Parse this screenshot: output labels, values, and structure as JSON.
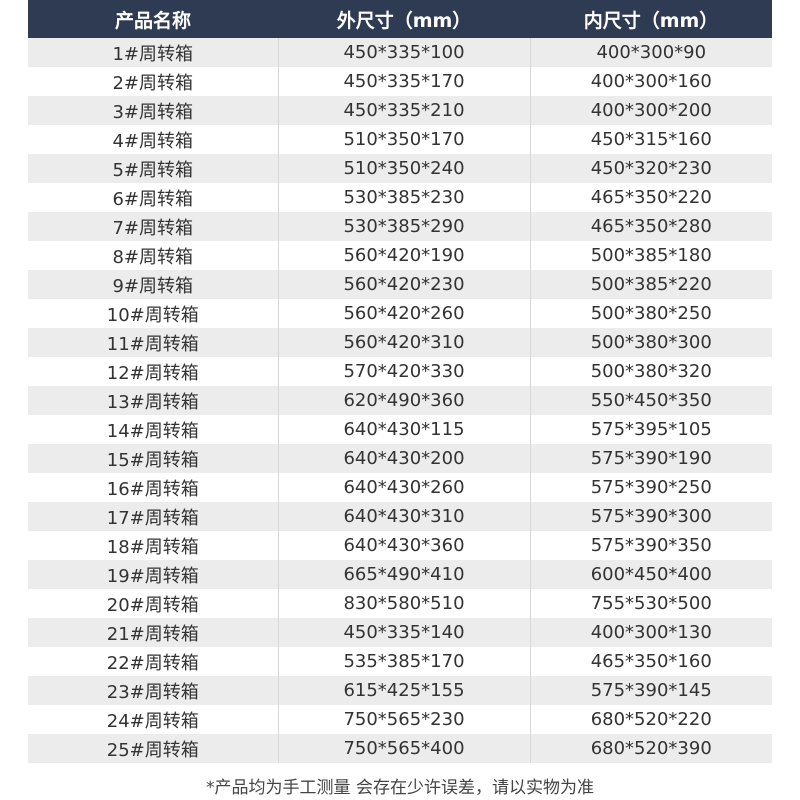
{
  "table": {
    "header": [
      "产品名称",
      "外尺寸（mm）",
      "内尺寸（mm）"
    ],
    "rows": [
      [
        "1#周转箱",
        "450*335*100",
        "400*300*90"
      ],
      [
        "2#周转箱",
        "450*335*170",
        "400*300*160"
      ],
      [
        "3#周转箱",
        "450*335*210",
        "400*300*200"
      ],
      [
        "4#周转箱",
        "510*350*170",
        "450*315*160"
      ],
      [
        "5#周转箱",
        "510*350*240",
        "450*320*230"
      ],
      [
        "6#周转箱",
        "530*385*230",
        "465*350*220"
      ],
      [
        "7#周转箱",
        "530*385*290",
        "465*350*280"
      ],
      [
        "8#周转箱",
        "560*420*190",
        "500*385*180"
      ],
      [
        "9#周转箱",
        "560*420*230",
        "500*385*220"
      ],
      [
        "10#周转箱",
        "560*420*260",
        "500*380*250"
      ],
      [
        "11#周转箱",
        "560*420*310",
        "500*380*300"
      ],
      [
        "12#周转箱",
        "570*420*330",
        "500*380*320"
      ],
      [
        "13#周转箱",
        "620*490*360",
        "550*450*350"
      ],
      [
        "14#周转箱",
        "640*430*115",
        "575*395*105"
      ],
      [
        "15#周转箱",
        "640*430*200",
        "575*390*190"
      ],
      [
        "16#周转箱",
        "640*430*260",
        "575*390*250"
      ],
      [
        "17#周转箱",
        "640*430*310",
        "575*390*300"
      ],
      [
        "18#周转箱",
        "640*430*360",
        "575*390*350"
      ],
      [
        "19#周转箱",
        "665*490*410",
        "600*450*400"
      ],
      [
        "20#周转箱",
        "830*580*510",
        "755*530*500"
      ],
      [
        "21#周转箱",
        "450*335*140",
        "400*300*130"
      ],
      [
        "22#周转箱",
        "535*385*170",
        "465*350*160"
      ],
      [
        "23#周转箱",
        "615*425*155",
        "575*390*145"
      ],
      [
        "24#周转箱",
        "750*565*230",
        "680*520*220"
      ],
      [
        "25#周转箱",
        "750*565*400",
        "680*520*390"
      ]
    ],
    "note": "*产品均为手工测量 会存在少许误差，请以实物为准"
  }
}
